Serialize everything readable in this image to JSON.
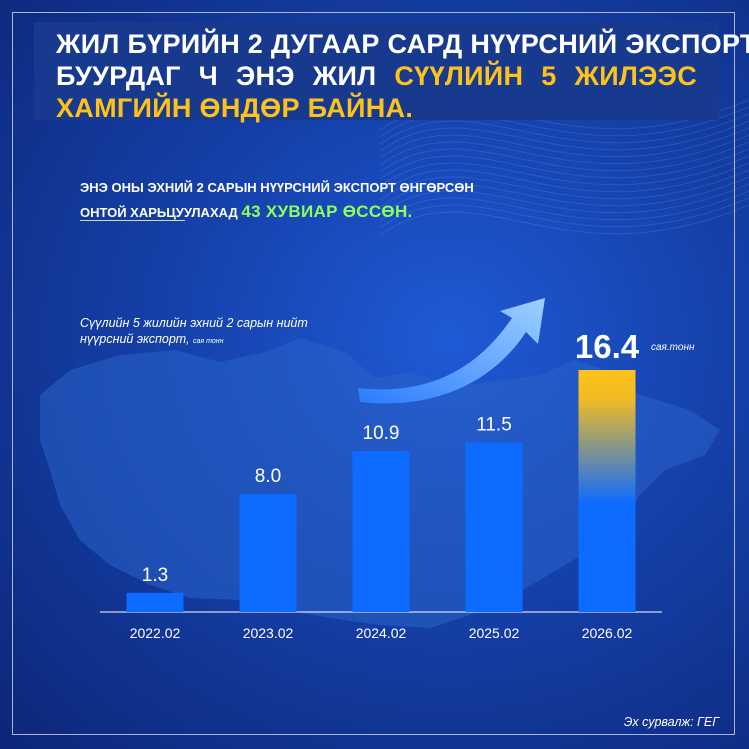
{
  "headline": {
    "line1": "ЖИЛ БҮРИЙН 2 ДУГААР САРД НҮҮРСНИЙ ЭКСПОРТ",
    "line2_prefix": "БУУРДАГ Ч ЭНЭ ЖИЛ",
    "line2_accent": "СҮҮЛИЙН 5 ЖИЛЭЭС",
    "line3_accent": "ХАМГИЙН ӨНДӨР БАЙНА."
  },
  "subheadline": {
    "line1": "ЭНЭ ОНЫ ЭХНИЙ 2 САРЫН НҮҮРСНИЙ ЭКСПОРТ ӨНГӨРСӨН",
    "line2_prefix": "ОНТОЙ ХАРЬЦУУЛАХАД",
    "line2_accent": "43 ХУВИАР ӨССӨН."
  },
  "chart_caption": {
    "line1": "Сүүлийн 5 жилийн эхний 2 сарын нийт",
    "line2": "нүүрсний экспорт,",
    "unit": "сая тонн"
  },
  "source": "Эх сурвалж: ГЕГ",
  "colors": {
    "bar": "#0d6bff",
    "highlight_top": "#ffc21a",
    "headline_accent": "#ffc21a",
    "subheadline_accent": "#8dff5a",
    "background": "#1540a8"
  },
  "chart_data": {
    "type": "bar",
    "categories": [
      "2022.02",
      "2023.02",
      "2024.02",
      "2025.02",
      "2026.02"
    ],
    "values": [
      1.3,
      8.0,
      10.9,
      11.5,
      16.4
    ],
    "value_labels": [
      "1.3",
      "8.0",
      "10.9",
      "11.5",
      "16.4"
    ],
    "highlight_index": 4,
    "highlight_unit": "сая.тонн",
    "ylim": [
      0,
      16.4
    ],
    "grid": false,
    "legend": "none",
    "title": "",
    "xlabel": "",
    "ylabel": ""
  }
}
